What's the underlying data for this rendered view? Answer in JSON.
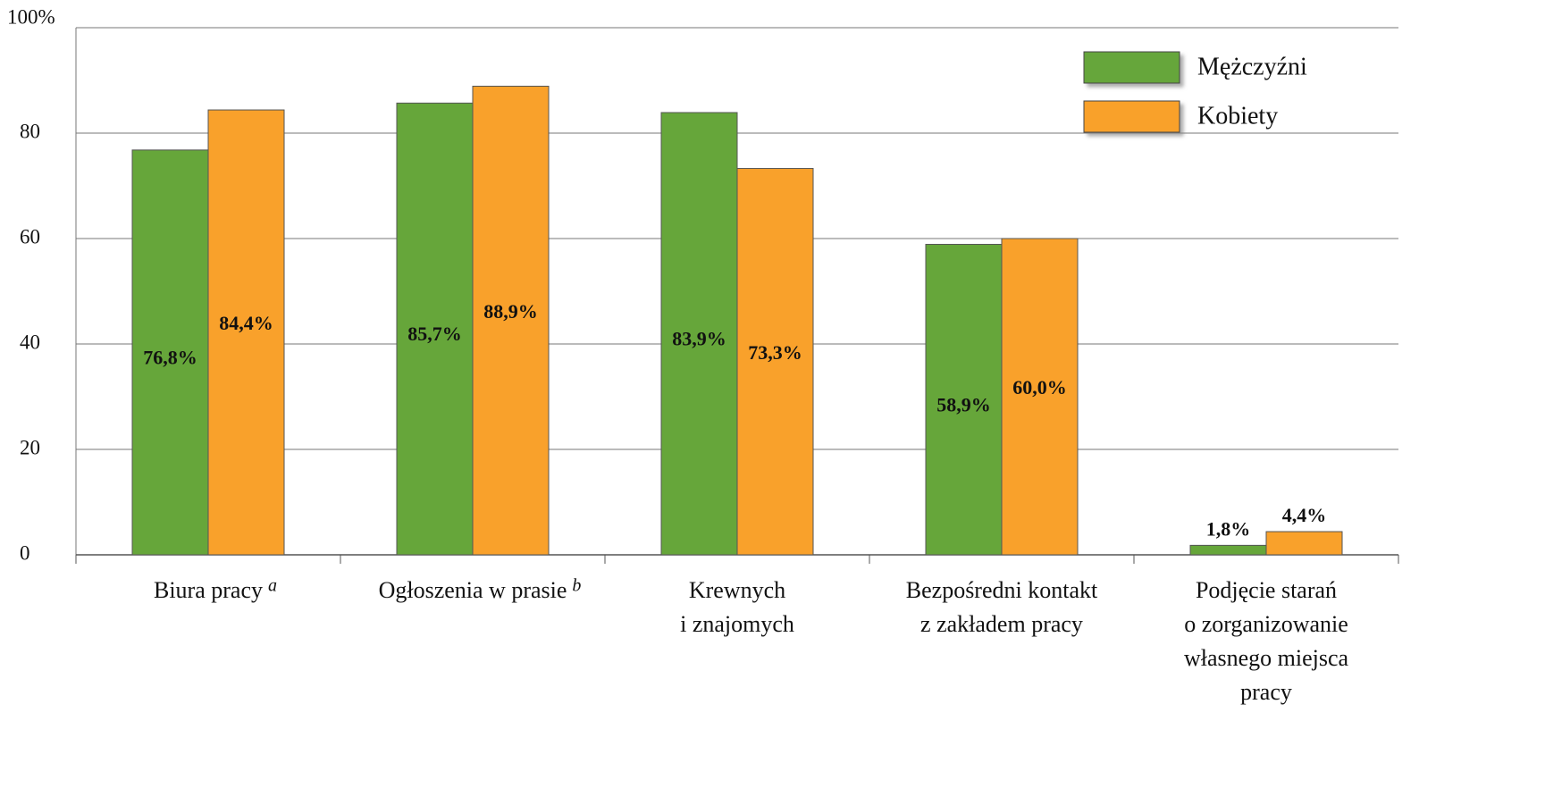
{
  "chart_data": {
    "type": "bar",
    "categories": [
      [
        "Biura  pracy"
      ],
      [
        "Ogłoszenia w prasie"
      ],
      [
        "Krewnych",
        "i znajomych"
      ],
      [
        "Bezpośredni kontakt",
        "z zakładem pracy"
      ],
      [
        "Podjęcie starań",
        "o zorganizowanie",
        "własnego miejsca",
        "pracy"
      ]
    ],
    "category_notes": [
      "a",
      "b",
      null,
      null,
      null
    ],
    "series": [
      {
        "name": "Mężczyźni",
        "color": "#66a63a",
        "values": [
          76.8,
          85.7,
          83.9,
          58.9,
          1.8
        ],
        "value_labels": [
          "76,8%",
          "85,7%",
          "83,9%",
          "58,9%",
          "1,8%"
        ]
      },
      {
        "name": "Kobiety",
        "color": "#f9a12b",
        "values": [
          84.4,
          88.9,
          73.3,
          60.0,
          4.4
        ],
        "value_labels": [
          "84,4%",
          "88,9%",
          "73,3%",
          "60,0%",
          "4,4%"
        ]
      }
    ],
    "ylim": [
      0,
      100
    ],
    "yticks": [
      0,
      20,
      40,
      60,
      80,
      {
        "value": 100,
        "label": "100%"
      }
    ],
    "grid": true,
    "legend": "top-right"
  }
}
